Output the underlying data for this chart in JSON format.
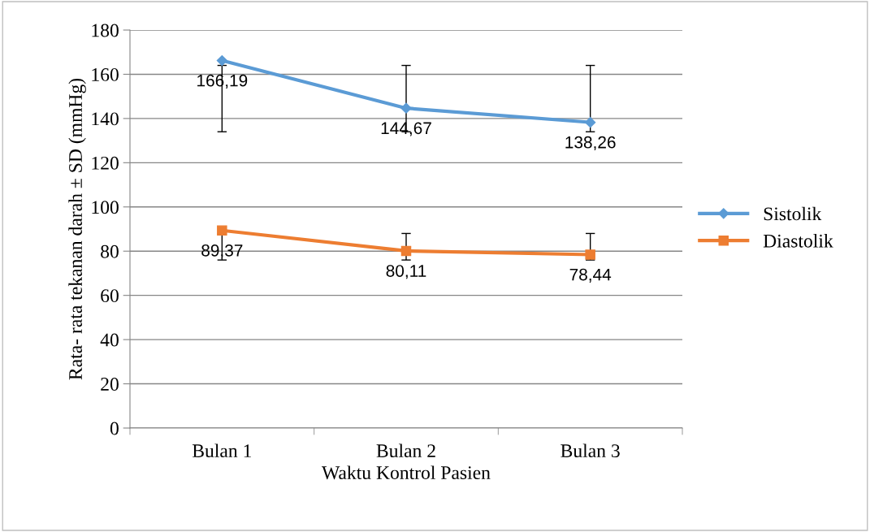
{
  "chart_data": {
    "type": "line",
    "xlabel": "Waktu Kontrol Pasien",
    "ylabel": "Rata- rata tekanan darah ± SD (mmHg)",
    "categories": [
      "Bulan 1",
      "Bulan 2",
      "Bulan 3"
    ],
    "series": [
      {
        "name": "Sistolik",
        "color": "#5b9bd5",
        "marker": "diamond",
        "values": [
          166.19,
          144.67,
          138.26
        ],
        "errors": [
          [
            134,
            164
          ],
          [
            134,
            164
          ],
          [
            134,
            164
          ]
        ],
        "value_labels": [
          "166,19",
          "144,67",
          "138,26"
        ]
      },
      {
        "name": "Diastolik",
        "color": "#ed7d31",
        "marker": "square",
        "values": [
          89.37,
          80.11,
          78.44
        ],
        "errors": [
          [
            76,
            88
          ],
          [
            76,
            88
          ],
          [
            76,
            88
          ]
        ],
        "value_labels": [
          "89,37",
          "80,11",
          "78,44"
        ]
      }
    ],
    "ylim": [
      0,
      180
    ],
    "yticks": [
      0,
      20,
      40,
      60,
      80,
      100,
      120,
      140,
      160,
      180
    ],
    "grid": "y",
    "legend": "right",
    "line_style": "solid"
  }
}
